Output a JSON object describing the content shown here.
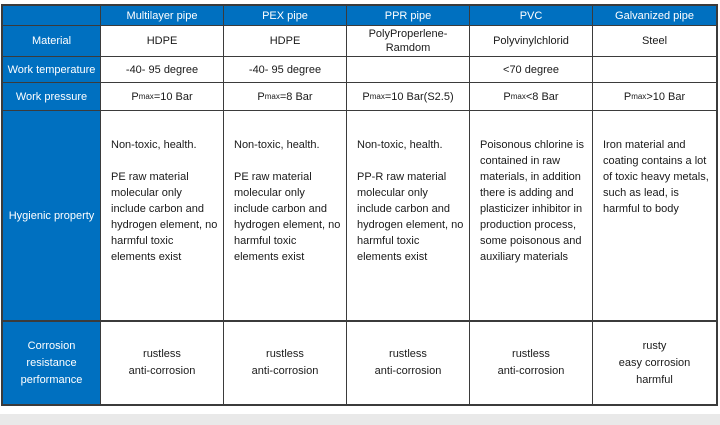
{
  "colors": {
    "header_blue": "#0070C0",
    "border": "#3b3b3b",
    "body_text": "#1a1a1a",
    "header_text": "#ffffff",
    "bottom_bar_gray": "#e9e9e9"
  },
  "table": {
    "corner_label": "",
    "columns": [
      {
        "label": "Multilayer pipe"
      },
      {
        "label": "PEX pipe"
      },
      {
        "label": "PPR pipe"
      },
      {
        "label": "PVC"
      },
      {
        "label": "Galvanized pipe"
      }
    ],
    "rows": {
      "material": {
        "label": "Material",
        "cells": [
          "HDPE",
          "HDPE",
          "PolyProperlene-\nRamdom",
          "Polyvinylchlorid",
          "Steel"
        ]
      },
      "work_temperature": {
        "label": "Work temperature",
        "cells": [
          "-40- 95 degree",
          "-40- 95 degree",
          "",
          "<70 degree",
          ""
        ]
      },
      "work_pressure": {
        "label": "Work pressure",
        "cells": [
          {
            "base": "P",
            "sub": "max",
            "rest": "=10 Bar"
          },
          {
            "base": "P",
            "sub": "max",
            "rest": "=8 Bar"
          },
          {
            "base": "P",
            "sub": "max",
            "rest": "=10 Bar(S2.5)"
          },
          {
            "base": "P",
            "sub": "max",
            "rest": " <8 Bar"
          },
          {
            "base": "P",
            "sub": "max",
            "rest": ">10 Bar"
          }
        ]
      },
      "hygienic": {
        "label": "Hygienic property",
        "cells": [
          "Non-toxic, health.\n\nPE raw material\nmolecular only\ninclude carbon and\nhydrogen element, no\nharmful toxic\nelements exist",
          "Non-toxic, health.\n\nPE raw material\nmolecular only\ninclude carbon and\nhydrogen element, no\nharmful toxic\nelements exist",
          "Non-toxic, health.\n\nPP-R raw material\nmolecular only\ninclude carbon and\nhydrogen element, no\nharmful toxic\nelements exist",
          "Poisonous chlorine is\ncontained in raw\nmaterials, in addition\nthere is adding and\nplasticizer inhibitor in\nproduction process,\nsome poisonous and\nauxiliary materials",
          "Iron material and\ncoating contains a lot\nof toxic heavy metals,\nsuch as lead, is\nharmful to body"
        ]
      },
      "corrosion": {
        "label": "Corrosion\nresistance\nperformance",
        "cells": [
          "rustless\nanti-corrosion",
          "rustless\nanti-corrosion",
          "rustless\nanti-corrosion",
          "rustless\nanti-corrosion",
          "rusty\neasy corrosion\nharmful"
        ]
      }
    }
  }
}
